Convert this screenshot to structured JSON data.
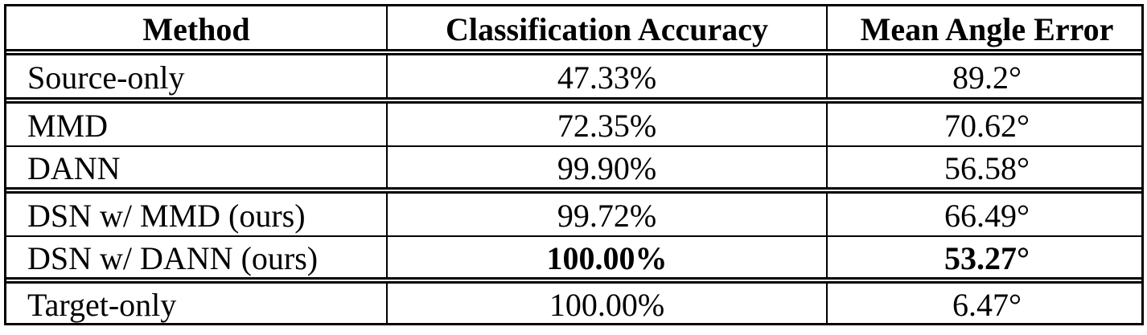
{
  "table": {
    "headers": [
      "Method",
      "Classification Accuracy",
      "Mean Angle Error"
    ],
    "groups": [
      [
        {
          "method": "Source-only",
          "accuracy": "47.33%",
          "angle": "89.2°",
          "bold": false
        }
      ],
      [
        {
          "method": "MMD",
          "accuracy": "72.35%",
          "angle": "70.62°",
          "bold": false
        },
        {
          "method": "DANN",
          "accuracy": "99.90%",
          "angle": "56.58°",
          "bold": false
        }
      ],
      [
        {
          "method": "DSN w/ MMD (ours)",
          "accuracy": "99.72%",
          "angle": "66.49°",
          "bold": false
        },
        {
          "method": "DSN w/ DANN (ours)",
          "accuracy": "100.00%",
          "angle": "53.27°",
          "bold": true
        }
      ],
      [
        {
          "method": "Target-only",
          "accuracy": "100.00%",
          "angle": "6.47°",
          "bold": false
        }
      ]
    ]
  }
}
